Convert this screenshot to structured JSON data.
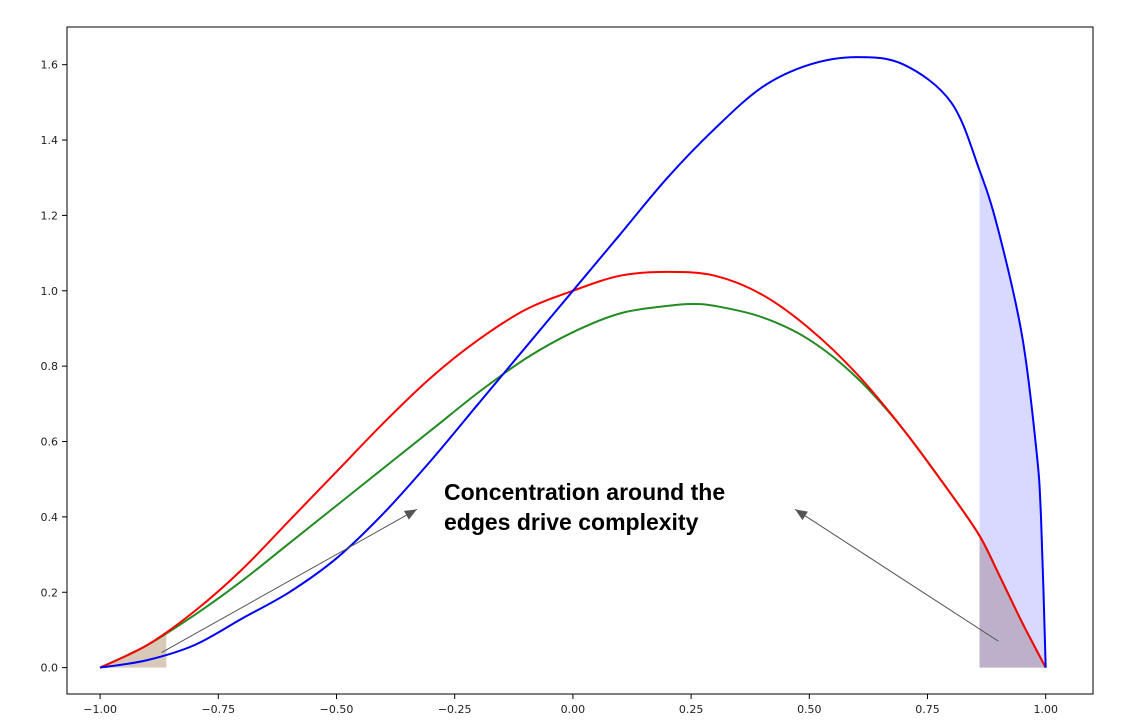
{
  "chart_data": {
    "type": "area",
    "title": "",
    "xlabel": "",
    "ylabel": "",
    "xlim": [
      -1.07,
      1.1
    ],
    "ylim": [
      -0.07,
      1.7
    ],
    "grid": false,
    "legend": "none",
    "x_ticks": [
      -1.0,
      -0.75,
      -0.5,
      -0.25,
      0.0,
      0.25,
      0.5,
      0.75,
      1.0
    ],
    "x_tick_labels": [
      "−1.00",
      "−0.75",
      "−0.50",
      "−0.25",
      "0.00",
      "0.25",
      "0.50",
      "0.75",
      "1.00"
    ],
    "y_ticks": [
      0.0,
      0.2,
      0.4,
      0.6,
      0.8,
      1.0,
      1.2,
      1.4,
      1.6
    ],
    "y_tick_labels": [
      "0.0",
      "0.2",
      "0.4",
      "0.6",
      "0.8",
      "1.0",
      "1.2",
      "1.4",
      "1.6"
    ],
    "series": [
      {
        "color": "#0000ff",
        "x": [
          -1.0,
          -0.9,
          -0.8,
          -0.7,
          -0.6,
          -0.5,
          -0.4,
          -0.3,
          -0.2,
          -0.1,
          0.0,
          0.1,
          0.2,
          0.3,
          0.4,
          0.5,
          0.6,
          0.7,
          0.8,
          0.86,
          0.9,
          0.95,
          0.98,
          0.99,
          1.0
        ],
        "y": [
          0.0,
          0.02,
          0.06,
          0.13,
          0.2,
          0.29,
          0.41,
          0.55,
          0.7,
          0.85,
          1.0,
          1.15,
          1.3,
          1.43,
          1.54,
          1.6,
          1.62,
          1.6,
          1.5,
          1.32,
          1.16,
          0.88,
          0.58,
          0.4,
          0.0
        ]
      },
      {
        "color": "#ff0000",
        "x": [
          -1.0,
          -0.9,
          -0.8,
          -0.7,
          -0.6,
          -0.5,
          -0.4,
          -0.3,
          -0.2,
          -0.1,
          0.0,
          0.1,
          0.2,
          0.3,
          0.4,
          0.5,
          0.6,
          0.7,
          0.8,
          0.86,
          0.9,
          0.95,
          1.0
        ],
        "y": [
          0.0,
          0.06,
          0.15,
          0.26,
          0.39,
          0.52,
          0.65,
          0.77,
          0.87,
          0.95,
          1.0,
          1.04,
          1.05,
          1.04,
          0.99,
          0.9,
          0.78,
          0.63,
          0.46,
          0.35,
          0.25,
          0.12,
          0.0
        ]
      },
      {
        "color": "#228b22",
        "x": [
          -1.0,
          -0.9,
          -0.8,
          -0.7,
          -0.6,
          -0.5,
          -0.4,
          -0.3,
          -0.2,
          -0.1,
          0.0,
          0.1,
          0.2,
          0.25,
          0.3,
          0.4,
          0.5,
          0.6,
          0.7,
          0.8,
          0.86,
          0.9,
          0.95,
          1.0
        ],
        "y": [
          0.0,
          0.06,
          0.14,
          0.23,
          0.33,
          0.43,
          0.53,
          0.63,
          0.73,
          0.82,
          0.89,
          0.94,
          0.96,
          0.965,
          0.96,
          0.93,
          0.87,
          0.77,
          0.63,
          0.46,
          0.35,
          0.25,
          0.12,
          0.0
        ]
      }
    ],
    "shaded_regions": [
      {
        "x_from": -1.0,
        "x_to": -0.86,
        "color": "#a07850",
        "opacity": 0.4
      },
      {
        "x_from": 0.86,
        "x_to": 1.0,
        "color": "#a07850",
        "opacity": 0.4
      },
      {
        "x_from": 0.86,
        "x_to": 1.0,
        "color": "#6666ff",
        "opacity": 0.25
      }
    ],
    "annotations": [
      {
        "text_lines": [
          "Concentration around the",
          "edges drive complexity"
        ],
        "arrows": [
          {
            "from": [
              -0.87,
              0.04
            ],
            "to": [
              -0.33,
              0.42
            ]
          },
          {
            "from": [
              0.9,
              0.07
            ],
            "to": [
              0.47,
              0.42
            ]
          }
        ]
      }
    ]
  }
}
